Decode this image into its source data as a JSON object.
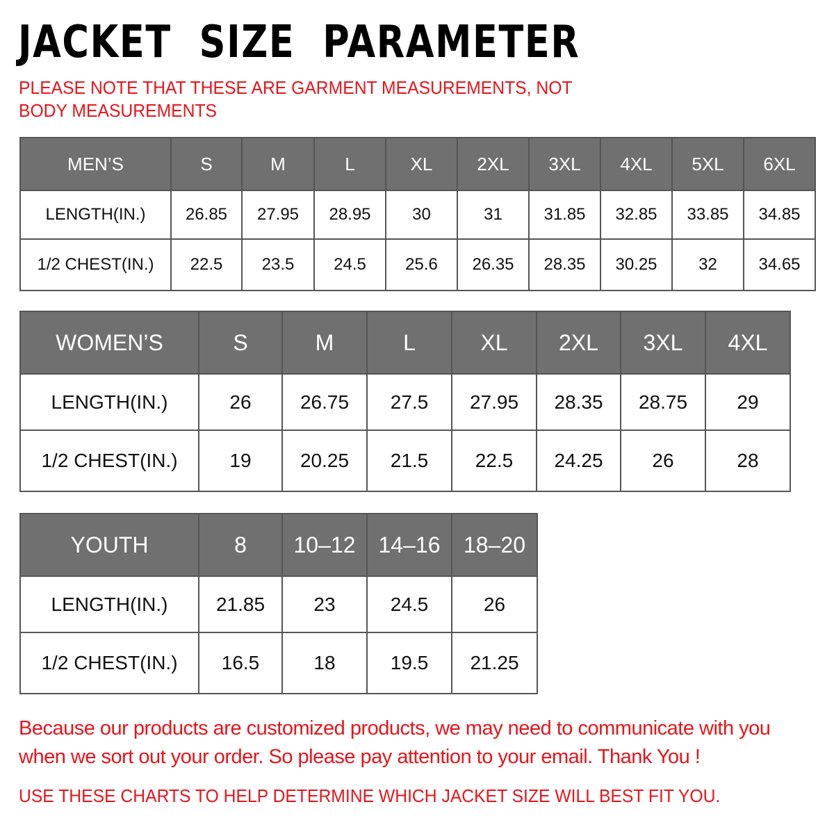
{
  "title": "JACKET  SIZE  PARAMETER",
  "note": "PLEASE NOTE THAT THESE ARE GARMENT MEASUREMENTS, NOT BODY MEASUREMENTS",
  "colors": {
    "header_bg": "#707070",
    "accent_red": "#e8141b"
  },
  "tables": {
    "men": {
      "headers": [
        "MEN’S",
        "S",
        "M",
        "L",
        "XL",
        "2XL",
        "3XL",
        "4XL",
        "5XL",
        "6XL"
      ],
      "rows": [
        [
          "LENGTH(IN.)",
          "26.85",
          "27.95",
          "28.95",
          "30",
          "31",
          "31.85",
          "32.85",
          "33.85",
          "34.85"
        ],
        [
          "1/2 CHEST(IN.)",
          "22.5",
          "23.5",
          "24.5",
          "25.6",
          "26.35",
          "28.35",
          "30.25",
          "32",
          "34.65"
        ]
      ]
    },
    "women": {
      "headers": [
        "WOMEN’S",
        "S",
        "M",
        "L",
        "XL",
        "2XL",
        "3XL",
        "4XL"
      ],
      "rows": [
        [
          "LENGTH(IN.)",
          "26",
          "26.75",
          "27.5",
          "27.95",
          "28.35",
          "28.75",
          "29"
        ],
        [
          "1/2 CHEST(IN.)",
          "19",
          "20.25",
          "21.5",
          "22.5",
          "24.25",
          "26",
          "28"
        ]
      ]
    },
    "youth": {
      "headers": [
        "YOUTH",
        "8",
        "10–12",
        "14–16",
        "18–20"
      ],
      "rows": [
        [
          "LENGTH(IN.)",
          "21.85",
          "23",
          "24.5",
          "26"
        ],
        [
          "1/2 CHEST(IN.)",
          "16.5",
          "18",
          "19.5",
          "21.25"
        ]
      ]
    }
  },
  "footer": {
    "message": "Because our products are customized products, we may need to communicate with you when we sort out your order. So please pay attention to your email. Thank You !",
    "instruction": "USE THESE CHARTS TO HELP DETERMINE WHICH JACKET SIZE WILL BEST FIT YOU."
  }
}
